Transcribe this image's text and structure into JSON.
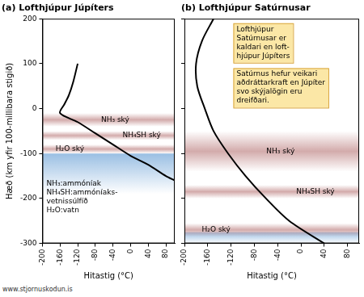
{
  "chart_data": [
    {
      "type": "line",
      "title": "(a) Lofthjúpur Júpíters",
      "x_label": "Hitastig (°C)",
      "y_label": "Hæð (km yfir 100-millibara stigið)",
      "x": [
        -120,
        -130,
        -140,
        -150,
        -160,
        -120,
        -80,
        -40,
        0,
        40,
        80,
        100
      ],
      "values": [
        100,
        60,
        30,
        10,
        -10,
        -30,
        -55,
        -80,
        -105,
        -125,
        -150,
        -160
      ],
      "color": "#000000",
      "xlim": [
        -200,
        100
      ],
      "xticks": [
        -200,
        -160,
        -120,
        -80,
        -40,
        0,
        40,
        80
      ],
      "ylim": [
        -300,
        200
      ],
      "yticks": [
        -300,
        -200,
        -100,
        0,
        100,
        200
      ],
      "grid": false,
      "cloud_layers": [
        {
          "label": "NH₃ ský",
          "ymin": -40,
          "ymax": -10,
          "color": "#c48f8f"
        },
        {
          "label": "NH₄SH ský",
          "ymin": -70,
          "ymax": -50,
          "color": "#c48f8f"
        },
        {
          "label": "H₂O ský",
          "ymin": -100,
          "ymax": -80,
          "color": "#c48f8f"
        }
      ],
      "water_layer": {
        "ymin": -190,
        "ymax": -100,
        "color": "#8fb8e0"
      },
      "annotations": [
        [
          "NH₃:ammóníak",
          "NH₄SH:ammóníaks-",
          "vetnissúlfíð",
          "H₂O:vatn"
        ]
      ]
    },
    {
      "type": "line",
      "title": "(b) Lofthjúpur Satúrnusar",
      "x_label": "Hitastig (°C)",
      "x": [
        -150,
        -170,
        -180,
        -178,
        -165,
        -150,
        -125,
        -95,
        -60,
        -20,
        40
      ],
      "values": [
        200,
        150,
        100,
        50,
        0,
        -50,
        -100,
        -150,
        -200,
        -250,
        -300
      ],
      "color": "#000000",
      "xlim": [
        -200,
        100
      ],
      "xticks": [
        -200,
        -160,
        -120,
        -80,
        -40,
        0,
        40,
        80
      ],
      "ylim": [
        -300,
        200
      ],
      "yticks": [
        -300,
        -200,
        -100,
        0,
        100,
        200
      ],
      "grid": false,
      "tick_labels": "x",
      "cloud_layers": [
        {
          "label": "NH₃ ský",
          "ymin": -140,
          "ymax": -50,
          "color": "#c48f8f"
        },
        {
          "label": "NH₄SH ský",
          "ymin": -200,
          "ymax": -170,
          "color": "#c48f8f"
        },
        {
          "label": "H₂O ský",
          "ymin": -285,
          "ymax": -255,
          "color": "#c48f8f"
        }
      ],
      "water_layer": {
        "ymin": -300,
        "ymax": -275,
        "color": "#8fb8e0"
      },
      "annotations": [
        [
          "Lofthjúpur",
          "Satúrnusar er",
          "kaldari en loft-",
          "hjúpur Júpíters"
        ],
        [
          "Satúrnus hefur veikari",
          "aðdráttarkraft en Júpíter",
          "svo skýjalögin eru",
          "dreifðari."
        ]
      ]
    }
  ],
  "source": "www.stjornuskodun.is"
}
